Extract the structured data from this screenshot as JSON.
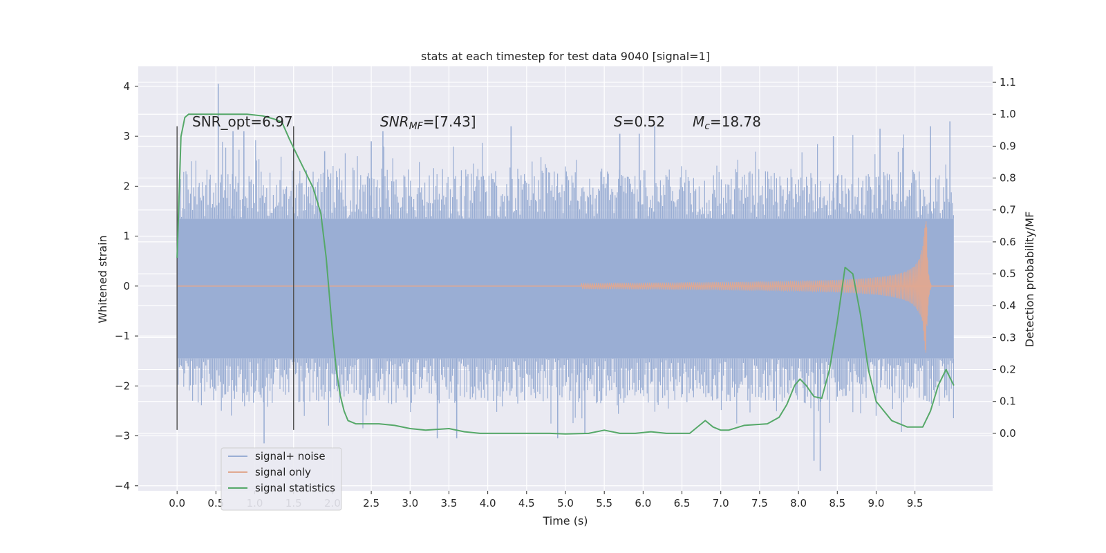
{
  "chart_data": {
    "type": "line",
    "title": "stats at each timestep for test data 9040 [signal=1]",
    "xlabel": "Time (s)",
    "ylabel": "Whitened strain",
    "ylabel_right": "Detection probability/MF",
    "xlim": [
      -0.5,
      10.5
    ],
    "ylim": [
      -4.1,
      4.4
    ],
    "ylim_right": [
      -0.18,
      1.15
    ],
    "xticks": [
      "0.0",
      "0.5",
      "1.0",
      "1.5",
      "2.0",
      "2.5",
      "3.0",
      "3.5",
      "4.0",
      "4.5",
      "5.0",
      "5.5",
      "6.0",
      "6.5",
      "7.0",
      "7.5",
      "8.0",
      "8.5",
      "9.0",
      "9.5"
    ],
    "yticks": [
      "4",
      "3",
      "2",
      "1",
      "0",
      "−1",
      "−2",
      "−3",
      "−4"
    ],
    "yticks_right": [
      "1.1",
      "1.0",
      "0.9",
      "0.8",
      "0.7",
      "0.6",
      "0.5",
      "0.4",
      "0.3",
      "0.2",
      "0.1",
      "0.0"
    ],
    "grid": true,
    "legend_position": "bottom-left",
    "annotations": {
      "snr_opt": "SNR_opt=6.97",
      "snr_mf_prefix": "SNR",
      "snr_mf_sub": "MF",
      "snr_mf_suffix": "=[7.43]",
      "s_prefix": "S",
      "s_suffix": "=0.52",
      "mc_prefix": "M",
      "mc_sub": "c",
      "mc_suffix": "=18.78"
    },
    "vertical_lines": [
      {
        "x": 0.0,
        "ymin": -2.88,
        "ymax": 3.2
      },
      {
        "x": 1.5,
        "ymin": -2.88,
        "ymax": 3.2
      }
    ],
    "series": [
      {
        "name": "signal+ noise",
        "color": "#9aaed4",
        "axis": "left",
        "x_range": [
          0.0,
          10.0
        ],
        "band": [
          -1.45,
          1.35
        ],
        "spike_peaks": [
          {
            "x": 0.53,
            "y": 4.05
          },
          {
            "x": 0.72,
            "y": 3.1
          },
          {
            "x": 0.86,
            "y": 3.1
          },
          {
            "x": 1.12,
            "y": -3.15
          },
          {
            "x": 1.9,
            "y": 2.7
          },
          {
            "x": 2.5,
            "y": 2.9
          },
          {
            "x": 2.65,
            "y": 3.1
          },
          {
            "x": 3.35,
            "y": -3.05
          },
          {
            "x": 3.6,
            "y": -3.05
          },
          {
            "x": 4.3,
            "y": 3.2
          },
          {
            "x": 4.9,
            "y": -3.05
          },
          {
            "x": 5.25,
            "y": -2.95
          },
          {
            "x": 5.7,
            "y": 3.05
          },
          {
            "x": 5.95,
            "y": 3.05
          },
          {
            "x": 6.15,
            "y": 3.2
          },
          {
            "x": 8.2,
            "y": -3.5
          },
          {
            "x": 8.28,
            "y": -3.7
          },
          {
            "x": 8.45,
            "y": 3.0
          },
          {
            "x": 9.05,
            "y": 3.15
          },
          {
            "x": 9.7,
            "y": 3.2
          },
          {
            "x": 9.95,
            "y": 3.3
          }
        ]
      },
      {
        "name": "signal only",
        "color": "#e0a890",
        "axis": "left",
        "chirp_start": 5.2,
        "merger_time": 9.65,
        "peak_amplitude": 1.35,
        "ringdown_end": 10.0
      },
      {
        "name": "signal statistics",
        "color": "#55a868",
        "axis": "right",
        "x": [
          0.0,
          0.05,
          0.1,
          0.15,
          0.25,
          0.4,
          0.6,
          0.9,
          1.1,
          1.25,
          1.35,
          1.45,
          1.55,
          1.65,
          1.75,
          1.85,
          1.92,
          2.0,
          2.05,
          2.1,
          2.15,
          2.2,
          2.3,
          2.4,
          2.6,
          2.8,
          3.0,
          3.2,
          3.5,
          3.7,
          3.9,
          4.2,
          4.5,
          4.8,
          5.0,
          5.3,
          5.5,
          5.7,
          5.9,
          6.1,
          6.3,
          6.6,
          6.8,
          6.9,
          7.0,
          7.1,
          7.3,
          7.6,
          7.75,
          7.85,
          7.95,
          8.02,
          8.1,
          8.2,
          8.3,
          8.4,
          8.5,
          8.6,
          8.7,
          8.8,
          8.9,
          9.0,
          9.2,
          9.4,
          9.6,
          9.7,
          9.8,
          9.9,
          10.0
        ],
        "y": [
          0.55,
          0.93,
          0.99,
          1.0,
          1.0,
          1.0,
          1.0,
          1.0,
          0.995,
          0.985,
          0.975,
          0.92,
          0.87,
          0.82,
          0.77,
          0.69,
          0.55,
          0.32,
          0.2,
          0.12,
          0.07,
          0.04,
          0.03,
          0.03,
          0.03,
          0.025,
          0.015,
          0.01,
          0.015,
          0.005,
          0.0,
          0.0,
          0.0,
          0.0,
          -0.002,
          0.0,
          0.01,
          0.0,
          0.0,
          0.005,
          0.0,
          0.0,
          0.04,
          0.02,
          0.01,
          0.01,
          0.025,
          0.03,
          0.05,
          0.09,
          0.15,
          0.17,
          0.15,
          0.115,
          0.11,
          0.2,
          0.35,
          0.52,
          0.5,
          0.37,
          0.2,
          0.1,
          0.04,
          0.02,
          0.02,
          0.07,
          0.15,
          0.2,
          0.15
        ]
      }
    ]
  }
}
